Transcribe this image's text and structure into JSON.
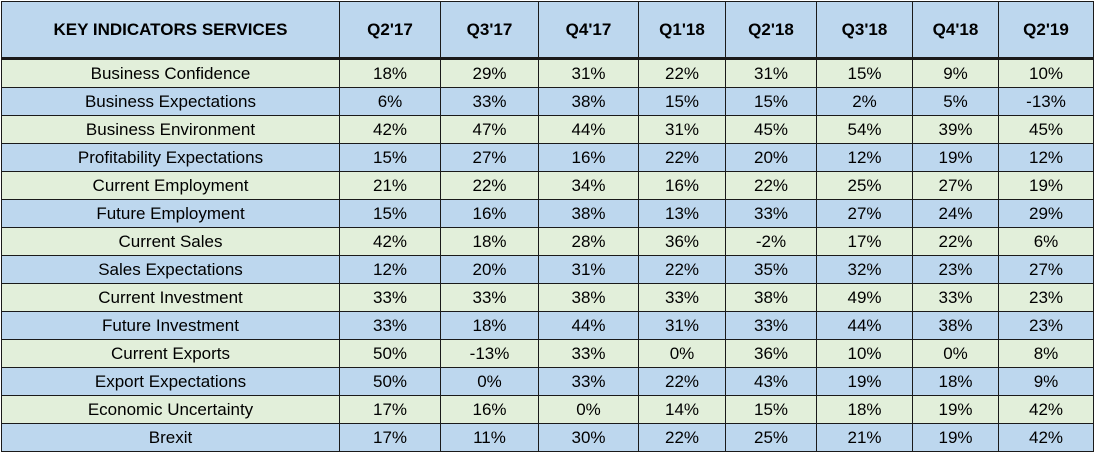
{
  "chart_data": {
    "type": "table",
    "columns": [
      "KEY INDICATORS SERVICES",
      "Q2'17",
      "Q3'17",
      "Q4'17",
      "Q1'18",
      "Q2'18",
      "Q3'18",
      "Q4'18",
      "Q2'19"
    ],
    "rows": [
      [
        "Business Confidence",
        "18%",
        "29%",
        "31%",
        "22%",
        "31%",
        "15%",
        "9%",
        "10%"
      ],
      [
        "Business Expectations",
        "6%",
        "33%",
        "38%",
        "15%",
        "15%",
        "2%",
        "5%",
        "-13%"
      ],
      [
        "Business Environment",
        "42%",
        "47%",
        "44%",
        "31%",
        "45%",
        "54%",
        "39%",
        "45%"
      ],
      [
        "Profitability Expectations",
        "15%",
        "27%",
        "16%",
        "22%",
        "20%",
        "12%",
        "19%",
        "12%"
      ],
      [
        "Current Employment",
        "21%",
        "22%",
        "34%",
        "16%",
        "22%",
        "25%",
        "27%",
        "19%"
      ],
      [
        "Future Employment",
        "15%",
        "16%",
        "38%",
        "13%",
        "33%",
        "27%",
        "24%",
        "29%"
      ],
      [
        "Current Sales",
        "42%",
        "18%",
        "28%",
        "36%",
        "-2%",
        "17%",
        "22%",
        "6%"
      ],
      [
        "Sales Expectations",
        "12%",
        "20%",
        "31%",
        "22%",
        "35%",
        "32%",
        "23%",
        "27%"
      ],
      [
        "Current Investment",
        "33%",
        "33%",
        "38%",
        "33%",
        "38%",
        "49%",
        "33%",
        "23%"
      ],
      [
        "Future Investment",
        "33%",
        "18%",
        "44%",
        "31%",
        "33%",
        "44%",
        "38%",
        "23%"
      ],
      [
        "Current Exports",
        "50%",
        "-13%",
        "33%",
        "0%",
        "36%",
        "10%",
        "0%",
        "8%"
      ],
      [
        "Export Expectations",
        "50%",
        "0%",
        "33%",
        "22%",
        "43%",
        "19%",
        "18%",
        "9%"
      ],
      [
        "Economic Uncertainty",
        "17%",
        "16%",
        "0%",
        "14%",
        "15%",
        "18%",
        "19%",
        "42%"
      ],
      [
        "Brexit",
        "17%",
        "11%",
        "30%",
        "22%",
        "25%",
        "21%",
        "19%",
        "42%"
      ]
    ]
  },
  "colors": {
    "header_bg": "#bdd7ee",
    "row_odd_bg": "#e2efda",
    "row_even_bg": "#bdd7ee",
    "border": "#1a1a1a"
  }
}
